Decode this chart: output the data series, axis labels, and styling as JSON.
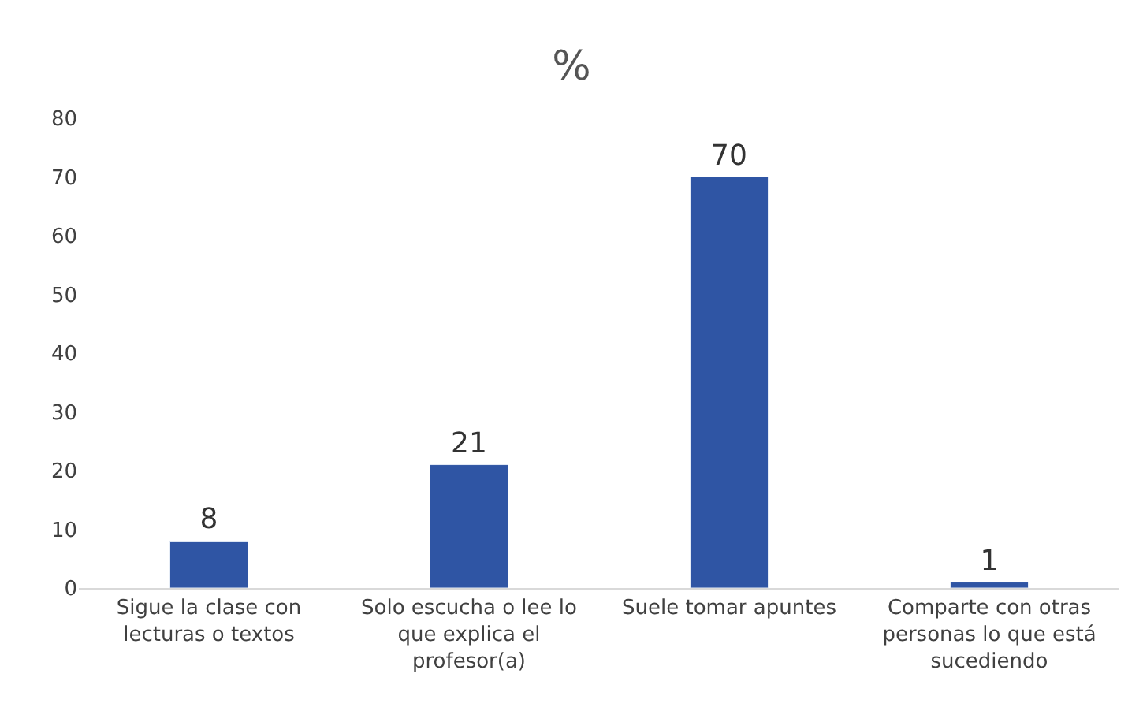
{
  "chart_data": {
    "type": "bar",
    "title": "%",
    "categories": [
      "Sigue la clase con lecturas o textos",
      "Solo escucha o lee lo que explica el profesor(a)",
      "Suele tomar apuntes",
      "Comparte con otras personas lo que está sucediendo"
    ],
    "values": [
      8,
      21,
      70,
      1
    ],
    "color": "#2f55a4",
    "ylim": [
      0,
      80
    ],
    "yticks": [
      0,
      10,
      20,
      30,
      40,
      50,
      60,
      70,
      80
    ],
    "data_labels": true
  }
}
